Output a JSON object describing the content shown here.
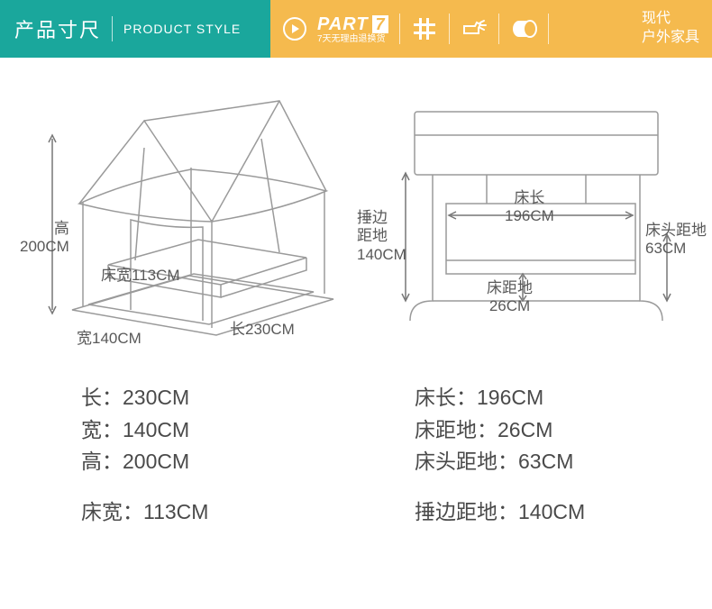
{
  "header": {
    "title_cn": "产品寸尺",
    "title_en": "PRODUCT STYLE",
    "part_label": "PART",
    "part_number": "7",
    "part_subtitle": "7天无理由退换货",
    "brand_line1": "现代",
    "brand_line2": "户外家具",
    "bg_left": "#1aa79c",
    "bg_right": "#f5ba4e"
  },
  "diagram_left": {
    "labels": {
      "height": "高\n200CM",
      "bed_width": "床宽113CM",
      "width": "宽140CM",
      "length": "长230CM"
    },
    "stroke": "#9a9a9a"
  },
  "diagram_right": {
    "labels": {
      "bed_length_title": "床长",
      "bed_length_val": "196CM",
      "side_ground_title": "捶边\n距地",
      "side_ground_val": "140CM",
      "bed_ground_title": "床距地",
      "bed_ground_val": "26CM",
      "head_ground_title": "床头距地",
      "head_ground_val": "63CM"
    },
    "stroke": "#9a9a9a"
  },
  "specs_left": [
    "长：230CM",
    "宽：140CM",
    "高：200CM",
    "",
    "床宽：113CM"
  ],
  "specs_right": [
    "床长：196CM",
    "床距地：26CM",
    "床头距地：63CM",
    "",
    "捶边距地：140CM"
  ],
  "colors": {
    "text": "#595959",
    "spec_text": "#4a4a4a"
  }
}
